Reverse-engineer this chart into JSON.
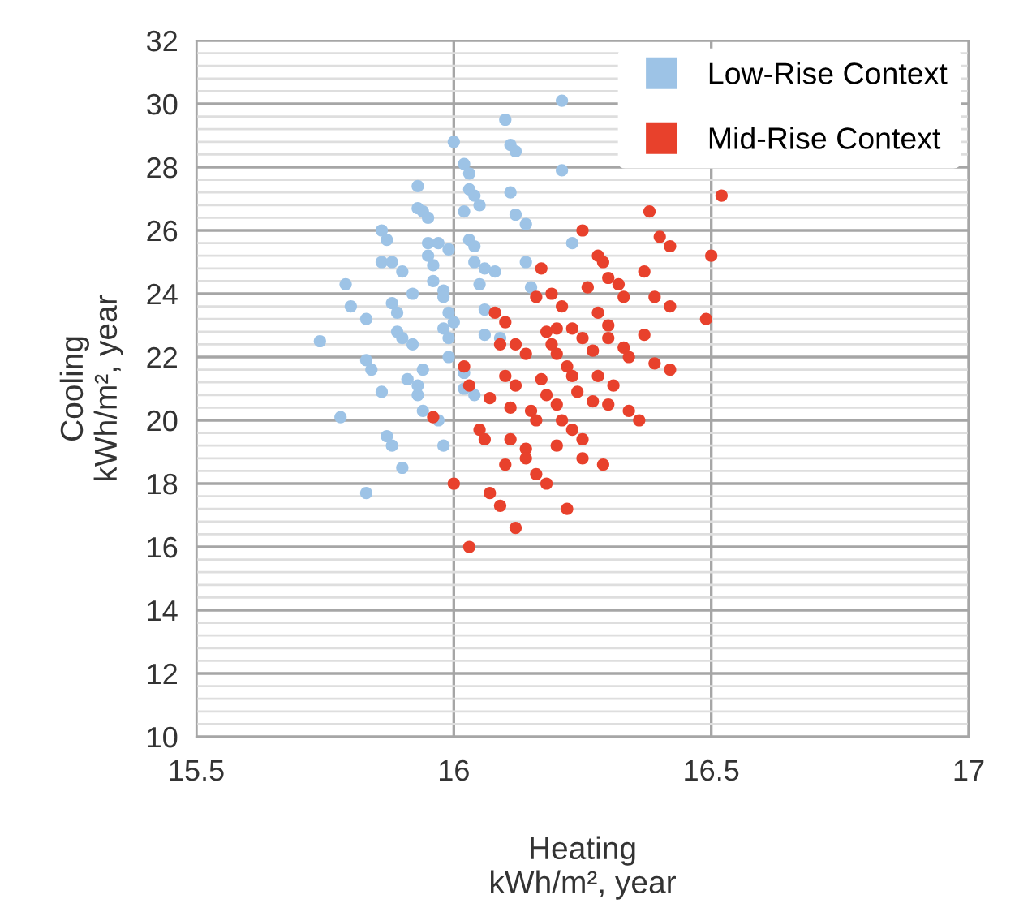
{
  "chart_data": {
    "type": "scatter",
    "xlabel": "Heating\nkWh/m², year",
    "ylabel": "Cooling\nkWh/m², year",
    "xlim": [
      15.5,
      17
    ],
    "xticks": [
      15.5,
      16,
      16.5,
      17
    ],
    "ylim": [
      10,
      32
    ],
    "yticks": [
      10,
      12,
      14,
      16,
      18,
      20,
      22,
      24,
      26,
      28,
      30,
      32
    ],
    "grid": true,
    "legend": "top right",
    "marker": "circle",
    "series": [
      {
        "name": "Low-Rise Context",
        "color": "#9dc3e6",
        "x": [
          16.21,
          16.1,
          16.0,
          16.11,
          16.12,
          16.02,
          16.03,
          16.21,
          15.93,
          16.03,
          16.04,
          16.05,
          16.11,
          15.93,
          15.94,
          15.95,
          16.02,
          16.12,
          16.14,
          15.86,
          15.87,
          15.95,
          15.97,
          15.99,
          16.03,
          16.04,
          16.23,
          15.86,
          15.88,
          15.9,
          15.95,
          15.96,
          16.04,
          16.06,
          16.08,
          16.14,
          15.79,
          15.96,
          15.92,
          15.98,
          15.98,
          16.05,
          16.15,
          15.8,
          15.83,
          15.88,
          15.89,
          15.99,
          16.0,
          16.06,
          15.74,
          15.89,
          15.9,
          15.92,
          15.98,
          15.99,
          16.06,
          16.09,
          15.83,
          15.84,
          15.94,
          15.99,
          15.91,
          15.93,
          15.93,
          15.86,
          16.02,
          16.02,
          16.04,
          15.78,
          15.94,
          15.97,
          15.87,
          15.88,
          15.98,
          15.9,
          15.83
        ],
        "values": [
          30.1,
          29.5,
          28.8,
          28.7,
          28.5,
          28.1,
          27.8,
          27.9,
          27.4,
          27.3,
          27.1,
          26.8,
          27.2,
          26.7,
          26.6,
          26.4,
          26.6,
          26.5,
          26.2,
          26.0,
          25.7,
          25.6,
          25.6,
          25.4,
          25.7,
          25.5,
          25.6,
          25.0,
          25.0,
          24.7,
          25.2,
          24.9,
          25.0,
          24.8,
          24.7,
          25.0,
          24.3,
          24.4,
          24.0,
          24.1,
          23.9,
          24.3,
          24.2,
          23.6,
          23.2,
          23.7,
          23.4,
          23.4,
          23.1,
          23.5,
          22.5,
          22.8,
          22.6,
          22.4,
          22.9,
          22.6,
          22.7,
          22.6,
          21.9,
          21.6,
          21.6,
          22.0,
          21.3,
          21.1,
          20.8,
          20.9,
          21.5,
          21.0,
          20.8,
          20.1,
          20.3,
          20.0,
          19.5,
          19.2,
          19.2,
          18.5,
          17.7
        ]
      },
      {
        "name": "Mid-Rise Context",
        "color": "#e8412c",
        "x": [
          16.52,
          16.38,
          16.25,
          16.4,
          16.42,
          16.5,
          16.28,
          16.29,
          16.17,
          16.37,
          16.3,
          16.32,
          16.33,
          16.26,
          16.16,
          16.19,
          16.21,
          16.39,
          16.42,
          16.28,
          16.3,
          16.49,
          16.37,
          16.3,
          16.2,
          16.23,
          16.25,
          16.18,
          16.08,
          16.1,
          16.09,
          16.12,
          16.19,
          16.14,
          16.2,
          16.27,
          16.33,
          16.34,
          16.39,
          16.42,
          16.02,
          16.1,
          16.17,
          16.22,
          16.23,
          16.28,
          16.03,
          16.12,
          16.31,
          16.07,
          16.18,
          16.24,
          16.27,
          16.3,
          16.11,
          16.15,
          16.2,
          16.34,
          16.36,
          15.96,
          16.16,
          16.21,
          16.05,
          16.06,
          16.11,
          16.23,
          16.25,
          16.14,
          16.14,
          16.2,
          16.1,
          16.25,
          16.29,
          16.16,
          16.18,
          16.0,
          16.07,
          16.09,
          16.22,
          16.12,
          16.03
        ],
        "values": [
          27.1,
          26.6,
          26.0,
          25.8,
          25.5,
          25.2,
          25.2,
          25.0,
          24.8,
          24.7,
          24.5,
          24.3,
          23.9,
          24.2,
          23.9,
          24.0,
          23.6,
          23.9,
          23.6,
          23.4,
          23.0,
          23.2,
          22.7,
          22.6,
          22.9,
          22.9,
          22.6,
          22.8,
          23.4,
          23.1,
          22.4,
          22.4,
          22.4,
          22.1,
          22.1,
          22.2,
          22.3,
          22.0,
          21.8,
          21.6,
          21.7,
          21.4,
          21.3,
          21.7,
          21.4,
          21.4,
          21.1,
          21.1,
          21.1,
          20.7,
          20.8,
          20.9,
          20.6,
          20.5,
          20.4,
          20.3,
          20.5,
          20.3,
          20.0,
          20.1,
          20.0,
          20.0,
          19.7,
          19.4,
          19.4,
          19.7,
          19.4,
          19.1,
          18.8,
          19.2,
          18.6,
          18.8,
          18.6,
          18.3,
          18.0,
          18.0,
          17.7,
          17.3,
          17.2,
          16.6,
          16.0
        ]
      }
    ]
  }
}
